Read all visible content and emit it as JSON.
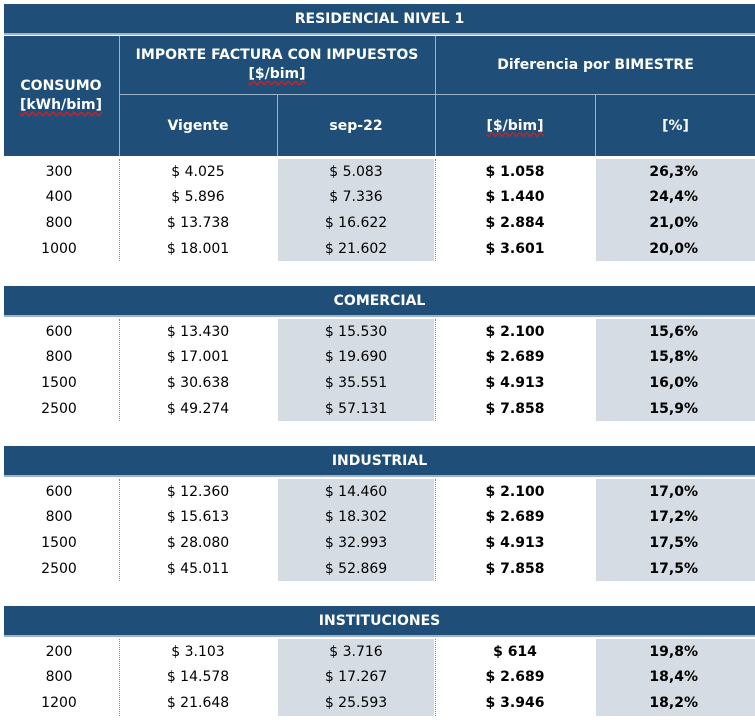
{
  "header": {
    "consumo": "CONSUMO",
    "consumo_unit": "[kWh/bim]",
    "importe": "IMPORTE FACTURA CON IMPUESTOS",
    "importe_unit": "[$/bim]",
    "diferencia": "Diferencia por BIMESTRE",
    "vigente": "Vigente",
    "sep": "sep-22",
    "diff_money": "[$/bim]",
    "diff_pct": "[%]"
  },
  "sections": [
    {
      "title": "RESIDENCIAL NIVEL 1",
      "rows": [
        {
          "consumo": "300",
          "vigente": "$ 4.025",
          "sep": "$ 5.083",
          "dif": "$ 1.058",
          "pct": "26,3%"
        },
        {
          "consumo": "400",
          "vigente": "$ 5.896",
          "sep": "$ 7.336",
          "dif": "$ 1.440",
          "pct": "24,4%"
        },
        {
          "consumo": "800",
          "vigente": "$ 13.738",
          "sep": "$ 16.622",
          "dif": "$ 2.884",
          "pct": "21,0%"
        },
        {
          "consumo": "1000",
          "vigente": "$ 18.001",
          "sep": "$ 21.602",
          "dif": "$ 3.601",
          "pct": "20,0%"
        }
      ]
    },
    {
      "title": "COMERCIAL",
      "rows": [
        {
          "consumo": "600",
          "vigente": "$ 13.430",
          "sep": "$ 15.530",
          "dif": "$ 2.100",
          "pct": "15,6%"
        },
        {
          "consumo": "800",
          "vigente": "$ 17.001",
          "sep": "$ 19.690",
          "dif": "$ 2.689",
          "pct": "15,8%"
        },
        {
          "consumo": "1500",
          "vigente": "$ 30.638",
          "sep": "$ 35.551",
          "dif": "$ 4.913",
          "pct": "16,0%"
        },
        {
          "consumo": "2500",
          "vigente": "$ 49.274",
          "sep": "$ 57.131",
          "dif": "$ 7.858",
          "pct": "15,9%"
        }
      ]
    },
    {
      "title": "INDUSTRIAL",
      "rows": [
        {
          "consumo": "600",
          "vigente": "$ 12.360",
          "sep": "$ 14.460",
          "dif": "$ 2.100",
          "pct": "17,0%"
        },
        {
          "consumo": "800",
          "vigente": "$ 15.613",
          "sep": "$ 18.302",
          "dif": "$ 2.689",
          "pct": "17,2%"
        },
        {
          "consumo": "1500",
          "vigente": "$ 28.080",
          "sep": "$ 32.993",
          "dif": "$ 4.913",
          "pct": "17,5%"
        },
        {
          "consumo": "2500",
          "vigente": "$ 45.011",
          "sep": "$ 52.869",
          "dif": "$ 7.858",
          "pct": "17,5%"
        }
      ]
    },
    {
      "title": "INSTITUCIONES",
      "rows": [
        {
          "consumo": "200",
          "vigente": "$ 3.103",
          "sep": "$ 3.716",
          "dif": "$ 614",
          "pct": "19,8%"
        },
        {
          "consumo": "800",
          "vigente": "$ 14.578",
          "sep": "$ 17.267",
          "dif": "$ 2.689",
          "pct": "18,4%"
        },
        {
          "consumo": "1200",
          "vigente": "$ 21.648",
          "sep": "$ 25.593",
          "dif": "$ 3.946",
          "pct": "18,2%"
        }
      ]
    }
  ]
}
